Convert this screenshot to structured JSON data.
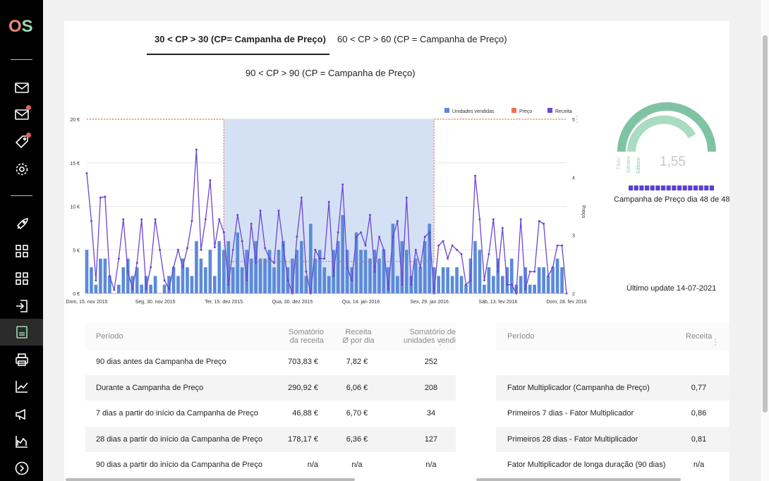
{
  "tabs": [
    {
      "label": "30 < CP > 30 (CP= Campanha de Preço)",
      "active": true
    },
    {
      "label": "60 < CP > 60 (CP = Campanha de Preço)",
      "active": false
    },
    {
      "label": "90 < CP > 90 (CP = Campanha de Preço)",
      "active": false
    }
  ],
  "sidebar": {
    "logo": {
      "o": "O",
      "s": "S"
    },
    "icons": [
      "mail-icon",
      "mail-notification-icon",
      "tag-icon",
      "settings-icon",
      "rocket-icon",
      "grid-icon",
      "grid-icon-2",
      "login-icon",
      "document-icon",
      "print-icon",
      "line-chart-icon",
      "megaphone-icon",
      "area-chart-icon",
      "arrow-circle-icon"
    ]
  },
  "chart_data": {
    "type": "bar",
    "legend": [
      "Unidades vendidas",
      "Preço",
      "Receita"
    ],
    "legend_placement": "top-right",
    "colors": {
      "units": "#5b8ad8",
      "price": "#f07050",
      "revenue": "#6a46d6",
      "highlight": "#d4e1f5"
    },
    "x_ticks": [
      "Dom, 15. nov 2015",
      "Seg, 30. nov 2015",
      "Ter, 15. dez 2015",
      "Qua, 30. dez 2015",
      "Qui, 14. jan 2016",
      "Sex, 29. jan 2016",
      "Sáb, 13. fev 2016",
      "Dom, 28. fev 2016"
    ],
    "y_left_ticks": [
      "0 €",
      "5 €",
      "10 €",
      "15 €",
      "20 €"
    ],
    "y_left_range": [
      0,
      20
    ],
    "y_right_ticks": [
      "2",
      "3",
      "4",
      "5"
    ],
    "y_right_range": [
      2,
      5
    ],
    "y_right_label": "Preço",
    "days": 106,
    "x_start": "2015-11-15",
    "campaign_start_day": 30,
    "campaign_end_day": 76,
    "units": [
      5,
      3,
      1,
      4,
      4,
      2,
      0,
      1,
      3,
      4,
      2,
      3,
      1,
      2,
      1,
      2,
      0,
      1,
      2,
      3,
      2,
      4,
      3,
      2,
      6,
      4,
      3,
      5,
      2,
      6,
      5,
      6,
      3,
      7,
      3,
      5,
      4,
      6,
      4,
      4,
      5,
      3,
      5,
      6,
      3,
      4,
      5,
      6,
      2,
      8,
      4,
      5,
      3,
      2,
      5,
      6,
      9,
      5,
      3,
      7,
      5,
      5,
      4,
      5,
      4,
      5,
      3,
      8,
      2,
      6,
      5,
      2,
      4,
      3,
      6,
      8,
      3,
      2,
      3,
      3,
      2,
      3,
      2,
      1,
      4,
      6,
      5,
      1,
      3,
      2,
      4,
      2,
      3,
      4,
      1,
      2,
      3,
      1,
      1,
      3,
      3,
      2,
      3,
      4,
      3,
      0
    ],
    "revenue": [
      13.8,
      8.3,
      1.5,
      11.0,
      11.1,
      2.0,
      0.4,
      4.0,
      8.5,
      2.5,
      0.5,
      3.5,
      8.5,
      0.5,
      3.0,
      8.5,
      5.0,
      1.5,
      0.5,
      3.0,
      5.0,
      3.0,
      5.2,
      8.3,
      16.5,
      5.0,
      8.5,
      13.0,
      5.3,
      8.5,
      7.0,
      1.0,
      5.0,
      9.0,
      6.0,
      1.5,
      8.0,
      3.5,
      9.5,
      5.2,
      4.0,
      3.5,
      9.5,
      5.5,
      1.5,
      0.0,
      6.5,
      11.0,
      2.5,
      0.0,
      5.0,
      4.0,
      4.0,
      10.5,
      2.0,
      7.0,
      12.5,
      3.0,
      1.5,
      6.5,
      7.0,
      5.5,
      9.0,
      2.5,
      6.5,
      5.0,
      0.5,
      6.5,
      8.3,
      1.0,
      11.0,
      1.0,
      5.0,
      3.0,
      6.5,
      7.0,
      0.0,
      5.5,
      6.0,
      4.0,
      5.5,
      5.0,
      4.5,
      1.0,
      1.5,
      13.5,
      8.5,
      1.5,
      4.5,
      8.5,
      2.5,
      7.5,
      1.0,
      1.0,
      0.0,
      8.5,
      0.5,
      2.5,
      2.5,
      8.3,
      8.0,
      2.0,
      3.0,
      5.5,
      5.5,
      0.0
    ],
    "price_before": 5,
    "price_during": 2.55,
    "price_after": 5
  },
  "gauge": {
    "value": "1,55",
    "labels": [
      "Título",
      "Género",
      "Editora"
    ],
    "colors": [
      "#dcdcdc",
      "#a9dcc0",
      "#7fc4a2"
    ],
    "progress_label": "Campanha de Preço dia 48 de 48",
    "progress_fraction": 1.0,
    "progress_color": "#5b3fd0"
  },
  "last_update": "Último update 14-07-2021",
  "table1": {
    "headers": {
      "period": "Período",
      "sum_revenue": [
        "Somatório",
        "da receita"
      ],
      "avg_revenue": [
        "Receita",
        "Ø por dia"
      ],
      "sum_units": [
        "Somatório de",
        "unidades vendi"
      ]
    },
    "rows": [
      {
        "period": "90 dias antes da Campanha de Preço",
        "sum_revenue": "703,83  €",
        "avg_revenue": "7,82  €",
        "units": "252"
      },
      {
        "period": "Durante a Campanha de Preço",
        "sum_revenue": "290,92  €",
        "avg_revenue": "6,06  €",
        "units": "208"
      },
      {
        "period": "7 dias a partir do início da Campanha de Preço",
        "sum_revenue": "46,88  €",
        "avg_revenue": "6,70  €",
        "units": "34"
      },
      {
        "period": "28 dias a partir do início da Campanha de Preço",
        "sum_revenue": "178,17  €",
        "avg_revenue": "6,36  €",
        "units": "127"
      },
      {
        "period": "90 dias a partir do início da Campanha de Preço",
        "sum_revenue": "n/a",
        "avg_revenue": "n/a",
        "units": "n/a"
      }
    ]
  },
  "table2": {
    "headers": {
      "period": "Período",
      "revenue": "Receita"
    },
    "rows": [
      {
        "period": "",
        "value": ""
      },
      {
        "period": "Fator Multiplicador (Campanha de Preço)",
        "value": "0,77"
      },
      {
        "period": "Primeiros 7 dias - Fator Multiplicador",
        "value": "0,86"
      },
      {
        "period": "Primeiros 28 dias - Fator Multiplicador",
        "value": "0,81"
      },
      {
        "period": "Fator Multiplicador de longa duração (90 dias)",
        "value": "n/a"
      }
    ]
  }
}
